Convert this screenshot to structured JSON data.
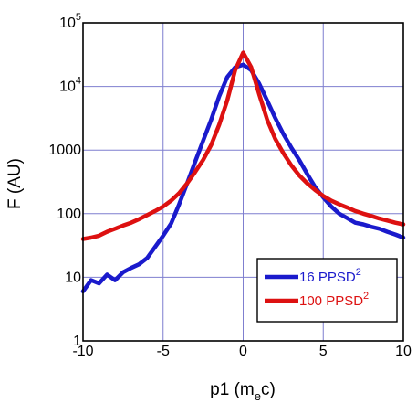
{
  "chart_data": {
    "type": "line",
    "xlabel": {
      "main": "p1 (m",
      "sub": "e",
      "tail": "c)"
    },
    "ylabel": "F (AU)",
    "xlim": [
      -10,
      10
    ],
    "ylim": [
      1,
      100000
    ],
    "yscale": "log",
    "grid": true,
    "legend_position": "bottom-right",
    "x_ticks": [
      {
        "value": -10,
        "label": "-10"
      },
      {
        "value": -5,
        "label": "-5"
      },
      {
        "value": 0,
        "label": "0"
      },
      {
        "value": 5,
        "label": "5"
      },
      {
        "value": 10,
        "label": "10"
      }
    ],
    "y_ticks": [
      {
        "value": 1,
        "label": "1",
        "sup": ""
      },
      {
        "value": 10,
        "label": "10",
        "sup": ""
      },
      {
        "value": 100,
        "label": "100",
        "sup": ""
      },
      {
        "value": 1000,
        "label": "1000",
        "sup": ""
      },
      {
        "value": 10000,
        "label": "10",
        "sup": "4"
      },
      {
        "value": 100000,
        "label": "10",
        "sup": "5"
      }
    ],
    "series": [
      {
        "name": "16 PPSD",
        "name_sup": "2",
        "color": "#1a1acc",
        "x": [
          -10,
          -9.5,
          -9,
          -8.5,
          -8,
          -7.5,
          -7,
          -6.5,
          -6,
          -5.5,
          -5,
          -4.5,
          -4,
          -3.5,
          -3,
          -2.5,
          -2,
          -1.5,
          -1,
          -0.5,
          0,
          0.5,
          1,
          1.5,
          2,
          2.5,
          3,
          3.5,
          4,
          4.5,
          5,
          5.5,
          6,
          6.5,
          7,
          7.5,
          8,
          8.5,
          9,
          9.5,
          10
        ],
        "y": [
          6,
          9,
          8,
          11,
          9,
          12,
          14,
          16,
          20,
          30,
          45,
          70,
          140,
          300,
          650,
          1400,
          3000,
          7000,
          14000,
          20000,
          22000,
          18000,
          11000,
          6000,
          3200,
          1800,
          1100,
          700,
          420,
          260,
          180,
          130,
          100,
          85,
          72,
          68,
          62,
          58,
          52,
          47,
          42
        ]
      },
      {
        "name": "100 PPSD",
        "name_sup": "2",
        "color": "#dd1111",
        "x": [
          -10,
          -9.5,
          -9,
          -8.5,
          -8,
          -7.5,
          -7,
          -6.5,
          -6,
          -5.5,
          -5,
          -4.5,
          -4,
          -3.5,
          -3,
          -2.5,
          -2,
          -1.5,
          -1,
          -0.5,
          0,
          0.5,
          1,
          1.5,
          2,
          2.5,
          3,
          3.5,
          4,
          4.5,
          5,
          5.5,
          6,
          6.5,
          7,
          7.5,
          8,
          8.5,
          9,
          9.5,
          10
        ],
        "y": [
          40,
          42,
          45,
          52,
          58,
          65,
          72,
          82,
          95,
          110,
          130,
          160,
          210,
          300,
          450,
          700,
          1200,
          2500,
          6000,
          18000,
          34000,
          20000,
          7500,
          3000,
          1500,
          900,
          580,
          400,
          300,
          235,
          190,
          160,
          140,
          125,
          110,
          100,
          92,
          84,
          78,
          72,
          68
        ]
      }
    ]
  }
}
